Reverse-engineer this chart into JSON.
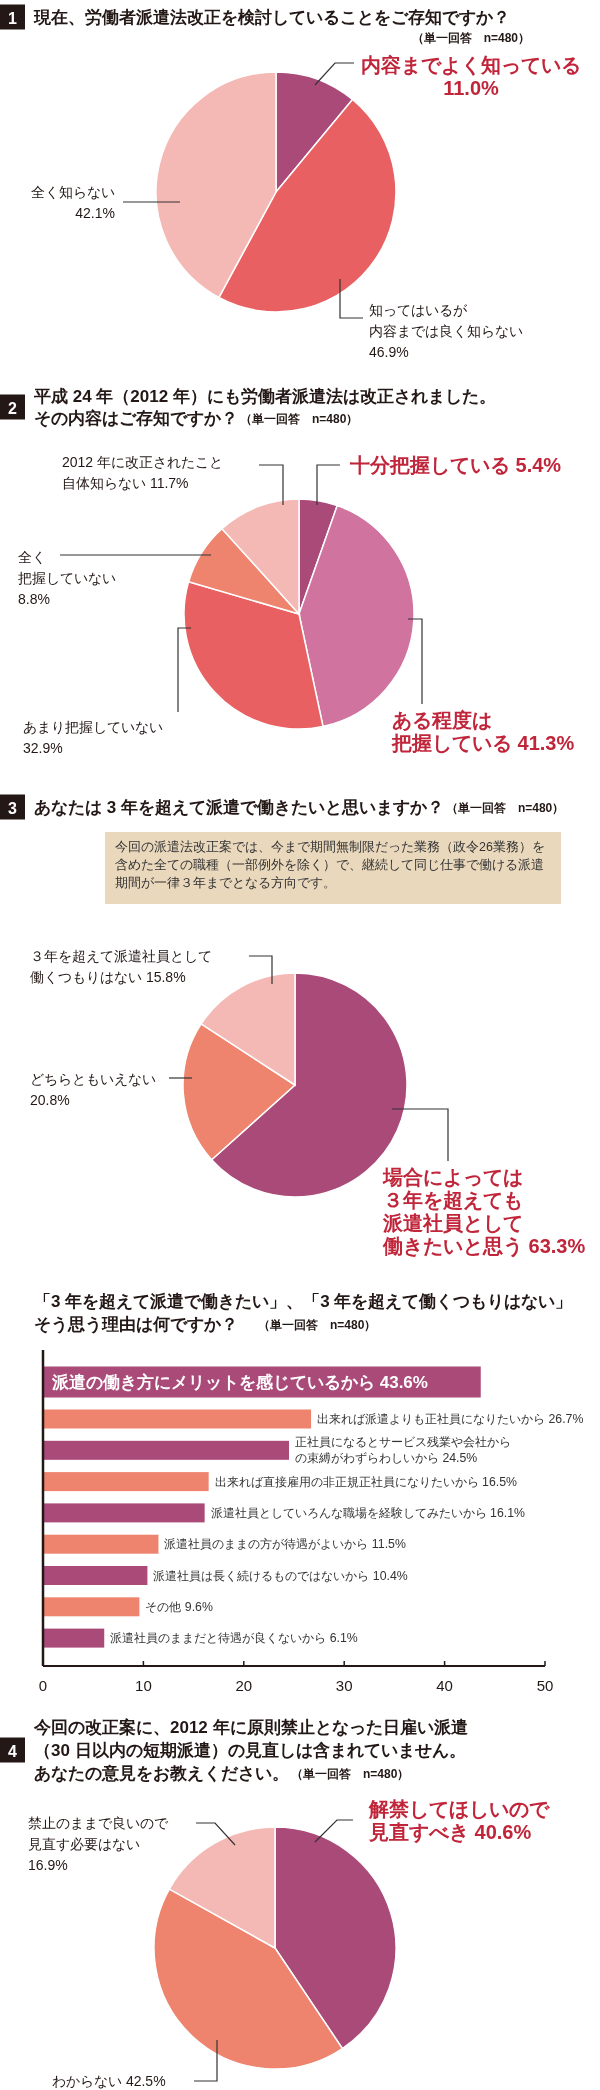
{
  "chart_data": [
    {
      "type": "pie",
      "title": "現在、労働者派遣法改正を検討していることをご存知ですか？",
      "subtitle": "（単一回答　n=480）",
      "annotations": [
        "1"
      ],
      "categories": [
        "内容までよく知っている",
        "知ってはいるが内容までは良く知らない",
        "全く知らない"
      ],
      "values": [
        11.0,
        46.9,
        42.1
      ],
      "value_labels": [
        "11.0%",
        "46.9%",
        "42.1%"
      ],
      "colors": [
        "#a94a78",
        "#e86062",
        "#f4b9b5"
      ]
    },
    {
      "type": "pie",
      "title": "平成 24 年（2012 年）にも労働者派遣法は改正されました。その内容はご存知ですか？",
      "subtitle": "（単一回答　n=480）",
      "annotations": [
        "2"
      ],
      "categories": [
        "十分把握している",
        "ある程度は把握している",
        "あまり把握していない",
        "全く把握していない",
        "2012 年に改正されたこと自体知らない"
      ],
      "values": [
        5.4,
        41.3,
        32.9,
        8.8,
        11.7
      ],
      "value_labels": [
        "5.4%",
        "41.3%",
        "32.9%",
        "8.8%",
        "11.7%"
      ],
      "colors": [
        "#a94a78",
        "#d0739f",
        "#e86062",
        "#ee846e",
        "#f4b9b5"
      ]
    },
    {
      "type": "pie",
      "title": "あなたは 3 年を超えて派遣で働きたいと思いますか？",
      "subtitle": "（単一回答　n=480）",
      "annotations": [
        "3",
        "今回の派遣法改正案では、今まで期間無制限だった業務（政令26業務）を含めた全ての職種（一部例外を除く）で、継続して同じ仕事で働ける派遣期間が一律３年までとなる方向です。"
      ],
      "categories": [
        "場合によっては３年を超えても派遣社員として働きたいと思う",
        "どちらともいえない",
        "３年を超えて派遣社員として働くつもりはない"
      ],
      "values": [
        63.3,
        20.8,
        15.8
      ],
      "value_labels": [
        "63.3%",
        "20.8%",
        "15.8%"
      ],
      "colors": [
        "#a94a78",
        "#ee846e",
        "#f4b9b5"
      ]
    },
    {
      "type": "bar",
      "orientation": "horizontal",
      "title": "「3 年を超えて派遣で働きたい」、「3 年を超えて働くつもりはない」そう思う理由は何ですか？",
      "subtitle": "（単一回答　n=480）",
      "categories": [
        "派遣の働き方にメリットを感じているから",
        "出来れば派遣よりも正社員になりたいから",
        "正社員になるとサービス残業や会社からの束縛がわずらわしいから",
        "出来れば直接雇用の非正規正社員になりたいから",
        "派遣社員としていろんな職場を経験してみたいから",
        "派遣社員のままの方が待遇がよいから",
        "派遣社員は長く続けるものではないから",
        "その他",
        "派遣社員のままだと待遇が良くないから"
      ],
      "values": [
        43.6,
        26.7,
        24.5,
        16.5,
        16.1,
        11.5,
        10.4,
        9.6,
        6.1
      ],
      "value_labels": [
        "43.6%",
        "26.7%",
        "24.5%",
        "16.5%",
        "16.1%",
        "11.5%",
        "10.4%",
        "9.6%",
        "6.1%"
      ],
      "colors": [
        "#a94a78",
        "#ee846e",
        "#a94a78",
        "#ee846e",
        "#a94a78",
        "#ee846e",
        "#a94a78",
        "#ee846e",
        "#a94a78"
      ],
      "xlim": [
        0,
        50
      ],
      "xticks": [
        0,
        10,
        20,
        30,
        40,
        50
      ]
    },
    {
      "type": "pie",
      "title": "今回の改正案に、2012 年に原則禁止となった日雇い派遣（30 日以内の短期派遣）の見直しは含まれていません。あなたの意見をお教えください。",
      "subtitle": "（単一回答　n=480）",
      "annotations": [
        "4"
      ],
      "categories": [
        "解禁してほしいので見直すべき",
        "わからない",
        "禁止のままで良いので見直す必要はない"
      ],
      "values": [
        40.6,
        42.5,
        16.9
      ],
      "value_labels": [
        "40.6%",
        "42.5%",
        "16.9%"
      ],
      "colors": [
        "#a94a78",
        "#ee846e",
        "#f4b9b5"
      ]
    }
  ]
}
